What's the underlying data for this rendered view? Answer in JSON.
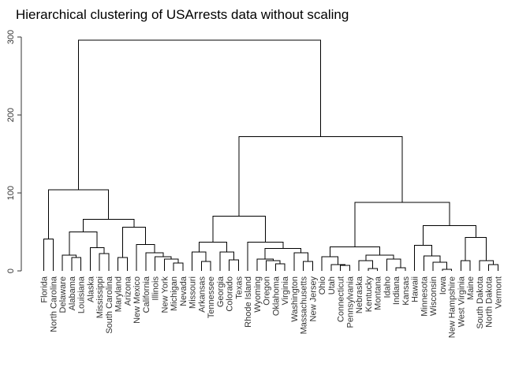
{
  "chart_data": {
    "type": "dendrogram",
    "title": "Hierarchical clustering of USArrests data without scaling",
    "xlabel": "",
    "ylabel": "",
    "ylim": [
      0,
      300
    ],
    "yticks": [
      0,
      100,
      200,
      300
    ],
    "grid": false,
    "leaves": [
      "Florida",
      "North Carolina",
      "Delaware",
      "Alabama",
      "Louisiana",
      "Alaska",
      "Mississippi",
      "South Carolina",
      "Maryland",
      "Arizona",
      "New Mexico",
      "California",
      "Illinois",
      "New York",
      "Michigan",
      "Nevada",
      "Missouri",
      "Arkansas",
      "Tennessee",
      "Georgia",
      "Colorado",
      "Texas",
      "Rhode Island",
      "Wyoming",
      "Oregon",
      "Oklahoma",
      "Virginia",
      "Washington",
      "Massachusetts",
      "New Jersey",
      "Ohio",
      "Utah",
      "Connecticut",
      "Pennsylvania",
      "Nebraska",
      "Kentucky",
      "Montana",
      "Idaho",
      "Indiana",
      "Kansas",
      "Hawaii",
      "Minnesota",
      "Wisconsin",
      "Iowa",
      "New Hampshire",
      "West Virginia",
      "Maine",
      "South Dakota",
      "North Dakota",
      "Vermont"
    ],
    "merges": [
      {
        "left": [
          "Florida"
        ],
        "right": [
          "North Carolina"
        ],
        "height": 41
      },
      {
        "left": [
          "Delaware"
        ],
        "right": [
          "Alabama",
          "Louisiana"
        ],
        "height": 20
      },
      {
        "left": [
          "Alabama"
        ],
        "right": [
          "Louisiana"
        ],
        "height": 17
      },
      {
        "left": [
          "Delaware",
          "Alabama",
          "Louisiana"
        ],
        "right": [
          "Alaska",
          "Mississippi",
          "South Carolina"
        ],
        "height": 50
      },
      {
        "left": [
          "Alaska"
        ],
        "right": [
          "Mississippi",
          "South Carolina"
        ],
        "height": 30
      },
      {
        "left": [
          "Mississippi"
        ],
        "right": [
          "South Carolina"
        ],
        "height": 22
      },
      {
        "left": [
          "Maryland"
        ],
        "right": [
          "Arizona"
        ],
        "height": 17
      },
      {
        "left": [
          "Maryland",
          "Arizona"
        ],
        "right": [
          "New Mexico",
          "California",
          "Illinois",
          "New York",
          "Michigan",
          "Nevada"
        ],
        "height": 56
      },
      {
        "left": [
          "New Mexico"
        ],
        "right": [
          "California",
          "Illinois",
          "New York",
          "Michigan",
          "Nevada"
        ],
        "height": 34
      },
      {
        "left": [
          "California"
        ],
        "right": [
          "Illinois",
          "New York",
          "Michigan",
          "Nevada"
        ],
        "height": 23
      },
      {
        "left": [
          "Illinois"
        ],
        "right": [
          "New York",
          "Michigan",
          "Nevada"
        ],
        "height": 18
      },
      {
        "left": [
          "New York"
        ],
        "right": [
          "Michigan",
          "Nevada"
        ],
        "height": 15
      },
      {
        "left": [
          "Michigan"
        ],
        "right": [
          "Nevada"
        ],
        "height": 10
      },
      {
        "left": [
          "Delaware",
          "Alabama",
          "Louisiana",
          "Alaska",
          "Mississippi",
          "South Carolina"
        ],
        "right": [
          "Maryland",
          "Arizona",
          "New Mexico",
          "California",
          "Illinois",
          "New York",
          "Michigan",
          "Nevada"
        ],
        "height": 66
      },
      {
        "left": [
          "Florida",
          "North Carolina"
        ],
        "right": [
          "Delaware",
          "Alabama",
          "Louisiana",
          "Alaska",
          "Mississippi",
          "South Carolina",
          "Maryland",
          "Arizona",
          "New Mexico",
          "California",
          "Illinois",
          "New York",
          "Michigan",
          "Nevada"
        ],
        "height": 104
      },
      {
        "left": [
          "Missouri"
        ],
        "right": [
          "Arkansas",
          "Tennessee"
        ],
        "height": 24
      },
      {
        "left": [
          "Arkansas"
        ],
        "right": [
          "Tennessee"
        ],
        "height": 12
      },
      {
        "left": [
          "Missouri",
          "Arkansas",
          "Tennessee"
        ],
        "right": [
          "Georgia",
          "Colorado",
          "Texas"
        ],
        "height": 37
      },
      {
        "left": [
          "Georgia"
        ],
        "right": [
          "Colorado",
          "Texas"
        ],
        "height": 24
      },
      {
        "left": [
          "Colorado"
        ],
        "right": [
          "Texas"
        ],
        "height": 14
      },
      {
        "left": [
          "Rhode Island"
        ],
        "right": [
          "Wyoming",
          "Oregon",
          "Oklahoma",
          "Virginia",
          "Washington",
          "Massachusetts",
          "New Jersey"
        ],
        "height": 37
      },
      {
        "left": [
          "Wyoming",
          "Oregon",
          "Oklahoma",
          "Virginia"
        ],
        "right": [
          "Washington",
          "Massachusetts",
          "New Jersey"
        ],
        "height": 29
      },
      {
        "left": [
          "Wyoming"
        ],
        "right": [
          "Oregon",
          "Oklahoma",
          "Virginia"
        ],
        "height": 15
      },
      {
        "left": [
          "Oregon"
        ],
        "right": [
          "Oklahoma",
          "Virginia"
        ],
        "height": 13
      },
      {
        "left": [
          "Oklahoma"
        ],
        "right": [
          "Virginia"
        ],
        "height": 9
      },
      {
        "left": [
          "Washington"
        ],
        "right": [
          "Massachusetts",
          "New Jersey"
        ],
        "height": 23
      },
      {
        "left": [
          "Massachusetts"
        ],
        "right": [
          "New Jersey"
        ],
        "height": 12
      },
      {
        "left": [
          "Missouri",
          "Arkansas",
          "Tennessee",
          "Georgia",
          "Colorado",
          "Texas"
        ],
        "right": [
          "Rhode Island",
          "Wyoming",
          "Oregon",
          "Oklahoma",
          "Virginia",
          "Washington",
          "Massachusetts",
          "New Jersey"
        ],
        "height": 70
      },
      {
        "left": [
          "Ohio"
        ],
        "right": [
          "Utah",
          "Connecticut",
          "Pennsylvania"
        ],
        "height": 18
      },
      {
        "left": [
          "Utah"
        ],
        "right": [
          "Connecticut",
          "Pennsylvania"
        ],
        "height": 8
      },
      {
        "left": [
          "Connecticut"
        ],
        "right": [
          "Pennsylvania"
        ],
        "height": 7
      },
      {
        "left": [
          "Ohio",
          "Utah",
          "Connecticut",
          "Pennsylvania"
        ],
        "right": [
          "Nebraska",
          "Kentucky",
          "Montana",
          "Idaho",
          "Indiana",
          "Kansas"
        ],
        "height": 31
      },
      {
        "left": [
          "Nebraska",
          "Kentucky",
          "Montana"
        ],
        "right": [
          "Idaho",
          "Indiana",
          "Kansas"
        ],
        "height": 20
      },
      {
        "left": [
          "Nebraska"
        ],
        "right": [
          "Kentucky",
          "Montana"
        ],
        "height": 13
      },
      {
        "left": [
          "Kentucky"
        ],
        "right": [
          "Montana"
        ],
        "height": 3
      },
      {
        "left": [
          "Idaho"
        ],
        "right": [
          "Indiana",
          "Kansas"
        ],
        "height": 15
      },
      {
        "left": [
          "Indiana"
        ],
        "right": [
          "Kansas"
        ],
        "height": 4
      },
      {
        "left": [
          "Hawaii"
        ],
        "right": [
          "Minnesota",
          "Wisconsin",
          "Iowa",
          "New Hampshire"
        ],
        "height": 33
      },
      {
        "left": [
          "Minnesota"
        ],
        "right": [
          "Wisconsin",
          "Iowa",
          "New Hampshire"
        ],
        "height": 19
      },
      {
        "left": [
          "Wisconsin"
        ],
        "right": [
          "Iowa",
          "New Hampshire"
        ],
        "height": 11
      },
      {
        "left": [
          "Iowa"
        ],
        "right": [
          "New Hampshire"
        ],
        "height": 2
      },
      {
        "left": [
          "West Virginia",
          "Maine"
        ],
        "right": [
          "South Dakota",
          "North Dakota",
          "Vermont"
        ],
        "height": 43
      },
      {
        "left": [
          "West Virginia"
        ],
        "right": [
          "Maine"
        ],
        "height": 13
      },
      {
        "left": [
          "South Dakota"
        ],
        "right": [
          "North Dakota",
          "Vermont"
        ],
        "height": 13
      },
      {
        "left": [
          "North Dakota"
        ],
        "right": [
          "Vermont"
        ],
        "height": 8
      },
      {
        "left": [
          "Hawaii",
          "Minnesota",
          "Wisconsin",
          "Iowa",
          "New Hampshire"
        ],
        "right": [
          "West Virginia",
          "Maine",
          "South Dakota",
          "North Dakota",
          "Vermont"
        ],
        "height": 58
      },
      {
        "left": [
          "Ohio",
          "Utah",
          "Connecticut",
          "Pennsylvania",
          "Nebraska",
          "Kentucky",
          "Montana",
          "Idaho",
          "Indiana",
          "Kansas"
        ],
        "right": [
          "Hawaii",
          "Minnesota",
          "Wisconsin",
          "Iowa",
          "New Hampshire",
          "West Virginia",
          "Maine",
          "South Dakota",
          "North Dakota",
          "Vermont"
        ],
        "height": 88
      },
      {
        "left": [
          "Missouri",
          "Arkansas",
          "Tennessee",
          "Georgia",
          "Colorado",
          "Texas",
          "Rhode Island",
          "Wyoming",
          "Oregon",
          "Oklahoma",
          "Virginia",
          "Washington",
          "Massachusetts",
          "New Jersey"
        ],
        "right": [
          "Ohio",
          "Utah",
          "Connecticut",
          "Pennsylvania",
          "Nebraska",
          "Kentucky",
          "Montana",
          "Idaho",
          "Indiana",
          "Kansas",
          "Hawaii",
          "Minnesota",
          "Wisconsin",
          "Iowa",
          "New Hampshire",
          "West Virginia",
          "Maine",
          "South Dakota",
          "North Dakota",
          "Vermont"
        ],
        "height": 172
      },
      {
        "left": [
          "Florida",
          "North Carolina",
          "Delaware",
          "Alabama",
          "Louisiana",
          "Alaska",
          "Mississippi",
          "South Carolina",
          "Maryland",
          "Arizona",
          "New Mexico",
          "California",
          "Illinois",
          "New York",
          "Michigan",
          "Nevada"
        ],
        "right": [
          "Missouri",
          "Arkansas",
          "Tennessee",
          "Georgia",
          "Colorado",
          "Texas",
          "Rhode Island",
          "Wyoming",
          "Oregon",
          "Oklahoma",
          "Virginia",
          "Washington",
          "Massachusetts",
          "New Jersey",
          "Ohio",
          "Utah",
          "Connecticut",
          "Pennsylvania",
          "Nebraska",
          "Kentucky",
          "Montana",
          "Idaho",
          "Indiana",
          "Kansas",
          "Hawaii",
          "Minnesota",
          "Wisconsin",
          "Iowa",
          "New Hampshire",
          "West Virginia",
          "Maine",
          "South Dakota",
          "North Dakota",
          "Vermont"
        ],
        "height": 296
      }
    ]
  }
}
